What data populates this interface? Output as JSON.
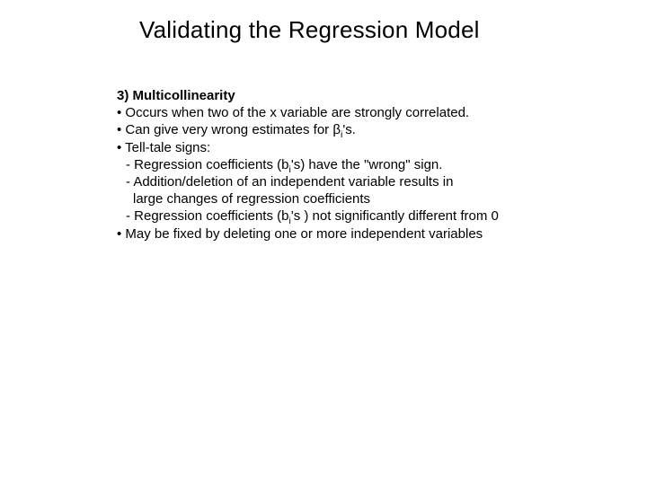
{
  "slide": {
    "title": "Validating the Regression Model",
    "heading": "3) Multicollinearity",
    "lines": {
      "l1": "• Occurs when two of the x variable are strongly correlated.",
      "l2_pre": "• Can give very wrong estimates for β",
      "l2_sub": "i",
      "l2_post": "'s.",
      "l3": "• Tell-tale signs:",
      "l4_pre": "- Regression coefficients (b",
      "l4_sub": "i",
      "l4_post": "'s) have the \"wrong\" sign.",
      "l5": "- Addition/deletion of an independent variable results in",
      "l6": "large changes of regression coefficients",
      "l7_pre": "- Regression coefficients (b",
      "l7_sub": "i",
      "l7_post": "'s ) not significantly different from 0",
      "l8": "• May be fixed by deleting one or more independent variables"
    },
    "colors": {
      "background": "#ffffff",
      "text": "#000000"
    },
    "typography": {
      "title_fontsize": 26,
      "body_fontsize": 15,
      "font_family": "Arial"
    }
  }
}
